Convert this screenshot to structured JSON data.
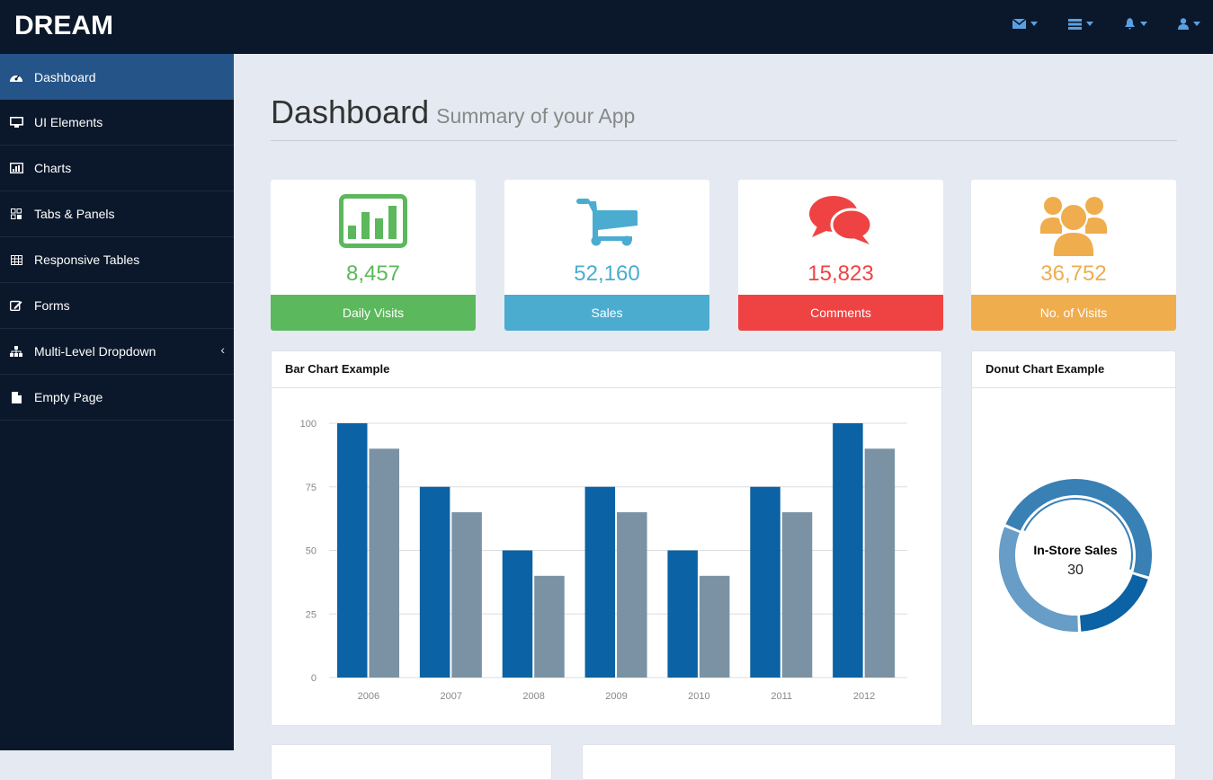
{
  "brand": "DREAM",
  "topnav": [
    {
      "icon": "envelope-icon"
    },
    {
      "icon": "tasks-icon"
    },
    {
      "icon": "bell-icon"
    },
    {
      "icon": "user-icon"
    }
  ],
  "sidebar": {
    "items": [
      {
        "label": "Dashboard",
        "icon": "dashboard-icon",
        "active": true
      },
      {
        "label": "UI Elements",
        "icon": "desktop-icon"
      },
      {
        "label": "Charts",
        "icon": "bar-chart-icon"
      },
      {
        "label": "Tabs & Panels",
        "icon": "qrcode-icon"
      },
      {
        "label": "Responsive Tables",
        "icon": "table-icon"
      },
      {
        "label": "Forms",
        "icon": "edit-icon"
      },
      {
        "label": "Multi-Level Dropdown",
        "icon": "sitemap-icon",
        "has_children": true
      },
      {
        "label": "Empty Page",
        "icon": "file-icon"
      }
    ]
  },
  "header": {
    "title": "Dashboard",
    "subtitle": "Summary of your App"
  },
  "stats": [
    {
      "value": "8,457",
      "label": "Daily Visits",
      "color": "#5cb85c",
      "icon": "bar-chart-icon"
    },
    {
      "value": "52,160",
      "label": "Sales",
      "color": "#4bacd0",
      "icon": "shopping-cart-icon"
    },
    {
      "value": "15,823",
      "label": "Comments",
      "color": "#ef4343",
      "icon": "comments-icon"
    },
    {
      "value": "36,752",
      "label": "No. of Visits",
      "color": "#efad4e",
      "icon": "users-icon"
    }
  ],
  "bar_panel": {
    "title": "Bar Chart Example"
  },
  "donut_panel": {
    "title": "Donut Chart Example"
  },
  "chart_data": [
    {
      "type": "bar",
      "categories": [
        "2006",
        "2007",
        "2008",
        "2009",
        "2010",
        "2011",
        "2012"
      ],
      "series": [
        {
          "values": [
            100,
            75,
            50,
            75,
            50,
            75,
            100
          ],
          "color": "#0b62a4"
        },
        {
          "values": [
            90,
            65,
            40,
            65,
            40,
            65,
            90
          ],
          "color": "#7a92a3"
        }
      ],
      "ylim": [
        0,
        100
      ],
      "yticks": [
        "0",
        "25",
        "50",
        "75",
        "100"
      ],
      "grid": true
    },
    {
      "type": "pie",
      "donut": true,
      "highlighted": {
        "label": "In-Store Sales",
        "value": "30"
      },
      "values": [
        30,
        12,
        20
      ],
      "colors": [
        "#3980b5",
        "#0b62a4",
        "#679dc6"
      ]
    }
  ]
}
